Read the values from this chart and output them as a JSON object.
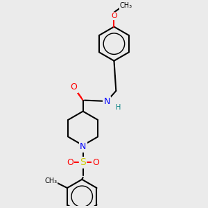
{
  "background_color": "#ebebeb",
  "bond_color": "#000000",
  "bond_width": 1.5,
  "atom_colors": {
    "O": "#ff0000",
    "N": "#0000ff",
    "S": "#cccc00",
    "C": "#000000",
    "H": "#008080"
  }
}
